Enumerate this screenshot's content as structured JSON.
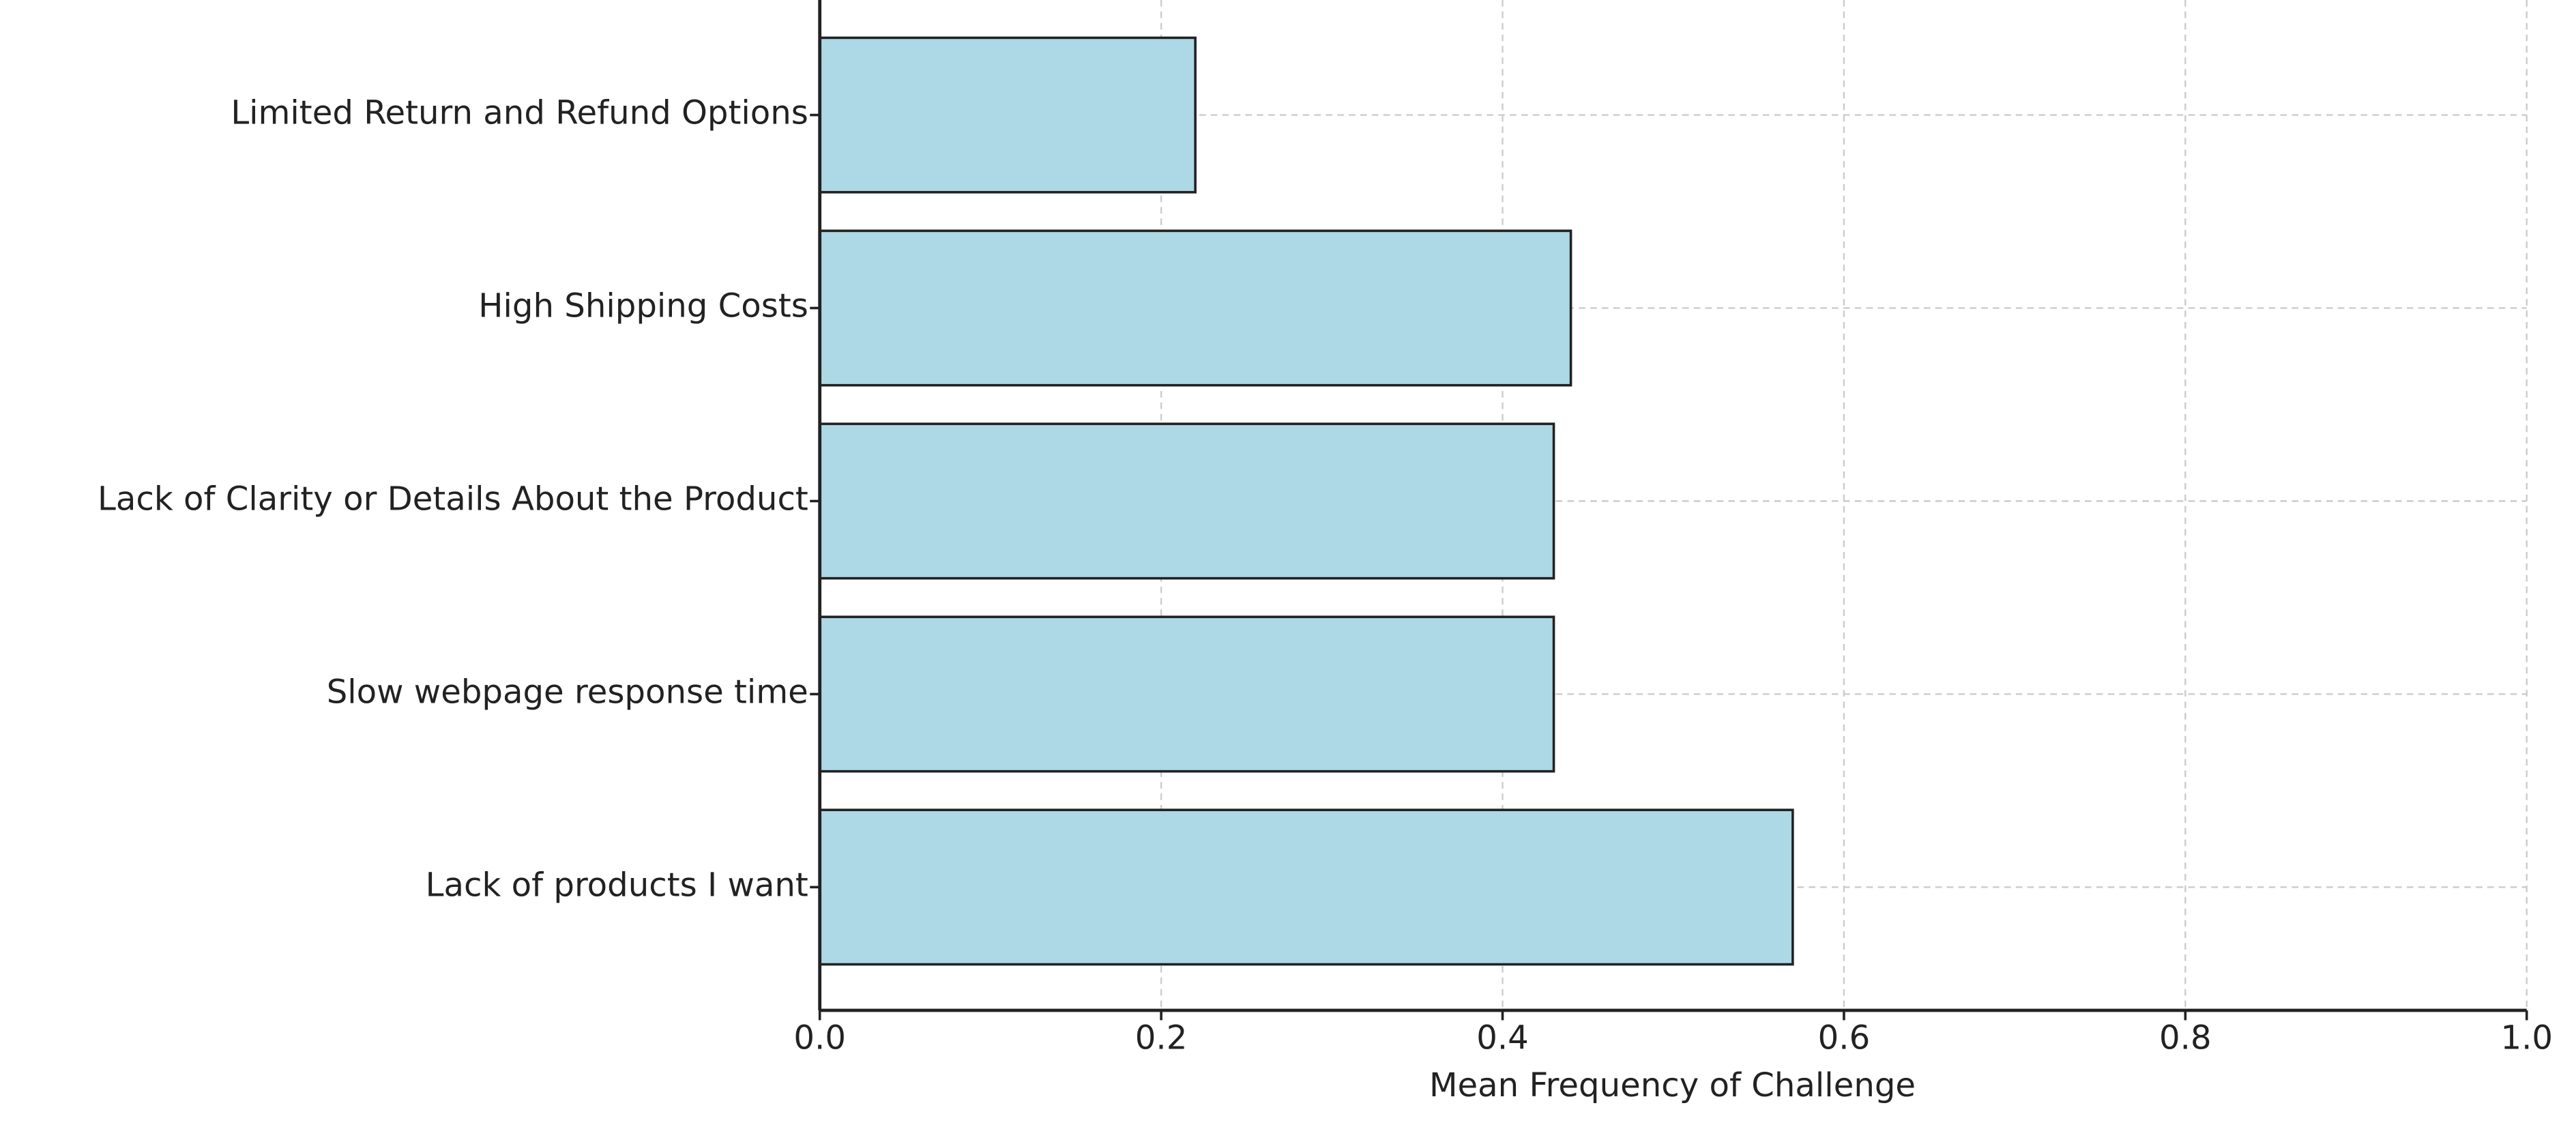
{
  "chart_data": {
    "type": "barh",
    "xlabel": "Mean Frequency of Challenge",
    "categories": [
      "Lack of products I want",
      "Slow webpage response time",
      "Lack of Clarity or Details About the Product",
      "High Shipping Costs",
      "Limited Return and Refund Options"
    ],
    "values": [
      0.57,
      0.43,
      0.43,
      0.44,
      0.22
    ],
    "color": "#add8e6",
    "xlim": [
      0,
      1
    ],
    "xticks": [
      {
        "value": 0,
        "label": "0.0"
      },
      0.2,
      0.4,
      0.6,
      0.8,
      {
        "value": 1,
        "label": "1.0"
      }
    ],
    "grid": true
  }
}
